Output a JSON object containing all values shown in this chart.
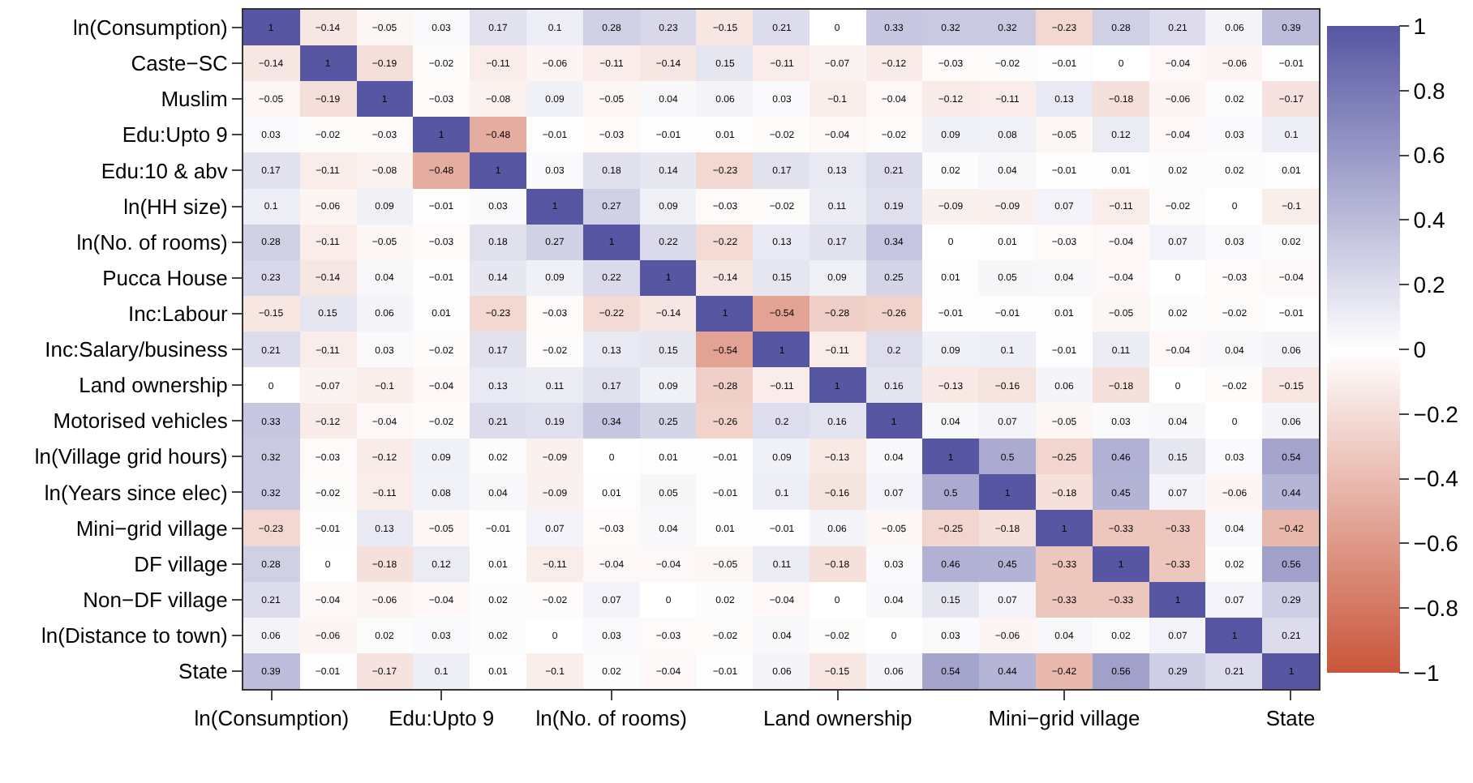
{
  "chart_data": {
    "type": "heatmap",
    "categories": [
      "ln(Consumption)",
      null,
      null,
      "Edu:Upto 9",
      null,
      null,
      "ln(No. of rooms)",
      null,
      null,
      null,
      "Land ownership",
      null,
      null,
      null,
      "Mini−grid village",
      null,
      null,
      null,
      "State"
    ],
    "y_categories": [
      "ln(Consumption)",
      "Caste−SC",
      "Muslim",
      "Edu:Upto 9",
      "Edu:10 & abv",
      "ln(HH size)",
      "ln(No. of rooms)",
      "Pucca House",
      "Inc:Labour",
      "Inc:Salary/business",
      "Land ownership",
      "Motorised vehicles",
      "ln(Village grid hours)",
      "ln(Years since elec)",
      "Mini−grid village",
      "DF village",
      "Non−DF village",
      "ln(Distance to town)",
      "State"
    ],
    "cells": [
      [
        1,
        -0.14,
        -0.05,
        0.03,
        0.17,
        0.1,
        0.28,
        0.23,
        -0.15,
        0.21,
        0,
        0.33,
        0.32,
        0.32,
        -0.23,
        0.28,
        0.21,
        0.06,
        0.39
      ],
      [
        -0.14,
        1,
        -0.19,
        -0.02,
        -0.11,
        -0.06,
        -0.11,
        -0.14,
        0.15,
        -0.11,
        -0.07,
        -0.12,
        -0.03,
        -0.02,
        -0.01,
        0,
        -0.04,
        -0.06,
        -0.01
      ],
      [
        -0.05,
        -0.19,
        1,
        -0.03,
        -0.08,
        0.09,
        -0.05,
        0.04,
        0.06,
        0.03,
        -0.1,
        -0.04,
        -0.12,
        -0.11,
        0.13,
        -0.18,
        -0.06,
        0.02,
        -0.17
      ],
      [
        0.03,
        -0.02,
        -0.03,
        1,
        -0.48,
        -0.01,
        -0.03,
        -0.01,
        0.01,
        -0.02,
        -0.04,
        -0.02,
        0.09,
        0.08,
        -0.05,
        0.12,
        -0.04,
        0.03,
        0.1
      ],
      [
        0.17,
        -0.11,
        -0.08,
        -0.48,
        1,
        0.03,
        0.18,
        0.14,
        -0.23,
        0.17,
        0.13,
        0.21,
        0.02,
        0.04,
        -0.01,
        0.01,
        0.02,
        0.02,
        0.01
      ],
      [
        0.1,
        -0.06,
        0.09,
        -0.01,
        0.03,
        1,
        0.27,
        0.09,
        -0.03,
        -0.02,
        0.11,
        0.19,
        -0.09,
        -0.09,
        0.07,
        -0.11,
        -0.02,
        0,
        -0.1
      ],
      [
        0.28,
        -0.11,
        -0.05,
        -0.03,
        0.18,
        0.27,
        1,
        0.22,
        -0.22,
        0.13,
        0.17,
        0.34,
        0,
        0.01,
        -0.03,
        -0.04,
        0.07,
        0.03,
        0.02
      ],
      [
        0.23,
        -0.14,
        0.04,
        -0.01,
        0.14,
        0.09,
        0.22,
        1,
        -0.14,
        0.15,
        0.09,
        0.25,
        0.01,
        0.05,
        0.04,
        -0.04,
        0,
        -0.03,
        -0.04
      ],
      [
        -0.15,
        0.15,
        0.06,
        0.01,
        -0.23,
        -0.03,
        -0.22,
        -0.14,
        1,
        -0.54,
        -0.28,
        -0.26,
        -0.01,
        -0.01,
        0.01,
        -0.05,
        0.02,
        -0.02,
        -0.01
      ],
      [
        0.21,
        -0.11,
        0.03,
        -0.02,
        0.17,
        -0.02,
        0.13,
        0.15,
        -0.54,
        1,
        -0.11,
        0.2,
        0.09,
        0.1,
        -0.01,
        0.11,
        -0.04,
        0.04,
        0.06
      ],
      [
        0,
        -0.07,
        -0.1,
        -0.04,
        0.13,
        0.11,
        0.17,
        0.09,
        -0.28,
        -0.11,
        1,
        0.16,
        -0.13,
        -0.16,
        0.06,
        -0.18,
        0,
        -0.02,
        -0.15
      ],
      [
        0.33,
        -0.12,
        -0.04,
        -0.02,
        0.21,
        0.19,
        0.34,
        0.25,
        -0.26,
        0.2,
        0.16,
        1,
        0.04,
        0.07,
        -0.05,
        0.03,
        0.04,
        0,
        0.06
      ],
      [
        0.32,
        -0.03,
        -0.12,
        0.09,
        0.02,
        -0.09,
        0,
        0.01,
        -0.01,
        0.09,
        -0.13,
        0.04,
        1,
        0.5,
        -0.25,
        0.46,
        0.15,
        0.03,
        0.54
      ],
      [
        0.32,
        -0.02,
        -0.11,
        0.08,
        0.04,
        -0.09,
        0.01,
        0.05,
        -0.01,
        0.1,
        -0.16,
        0.07,
        0.5,
        1,
        -0.18,
        0.45,
        0.07,
        -0.06,
        0.44
      ],
      [
        -0.23,
        -0.01,
        0.13,
        -0.05,
        -0.01,
        0.07,
        -0.03,
        0.04,
        0.01,
        -0.01,
        0.06,
        -0.05,
        -0.25,
        -0.18,
        1,
        -0.33,
        -0.33,
        0.04,
        -0.42
      ],
      [
        0.28,
        0,
        -0.18,
        0.12,
        0.01,
        -0.11,
        -0.04,
        -0.04,
        -0.05,
        0.11,
        -0.18,
        0.03,
        0.46,
        0.45,
        -0.33,
        1,
        -0.33,
        0.02,
        0.56
      ],
      [
        0.21,
        -0.04,
        -0.06,
        -0.04,
        0.02,
        -0.02,
        0.07,
        0,
        0.02,
        -0.04,
        0,
        0.04,
        0.15,
        0.07,
        -0.33,
        -0.33,
        1,
        0.07,
        0.29
      ],
      [
        0.06,
        -0.06,
        0.02,
        0.03,
        0.02,
        0,
        0.03,
        -0.03,
        -0.02,
        0.04,
        -0.02,
        0,
        0.03,
        -0.06,
        0.04,
        0.02,
        0.07,
        1,
        0.21
      ],
      [
        0.39,
        -0.01,
        -0.17,
        0.1,
        0.01,
        -0.1,
        0.02,
        -0.04,
        -0.01,
        0.06,
        -0.15,
        0.06,
        0.54,
        0.44,
        -0.42,
        0.56,
        0.29,
        0.21,
        1
      ]
    ],
    "clim": [
      -1,
      1
    ],
    "cticks": [
      -1,
      -0.8,
      -0.6,
      -0.4,
      -0.2,
      0,
      0.2,
      0.4,
      0.6,
      0.8,
      1
    ],
    "colors": [
      "#c9553a",
      "#ffffff",
      "#5656a3"
    ],
    "data_labels": true
  }
}
